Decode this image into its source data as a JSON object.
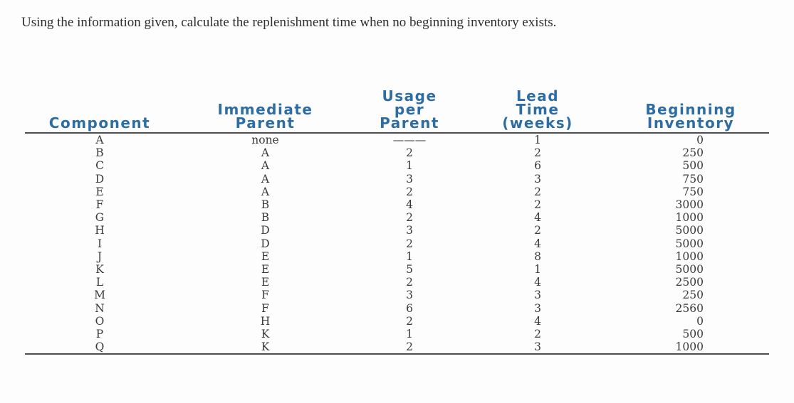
{
  "question": "Using the information given, calculate the replenishment time when no beginning inventory exists.",
  "table": {
    "columns": [
      {
        "key": "component",
        "label": "Component"
      },
      {
        "key": "immediate_parent",
        "label": "Immediate\nParent"
      },
      {
        "key": "usage_per_parent",
        "label": "Usage\nper\nParent"
      },
      {
        "key": "lead_time_weeks",
        "label": "Lead\nTime\n(weeks)"
      },
      {
        "key": "beginning_inventory",
        "label": "Beginning\nInventory"
      }
    ],
    "rows": [
      {
        "component": "A",
        "immediate_parent": "none",
        "usage_per_parent": "———",
        "lead_time_weeks": "1",
        "beginning_inventory": "0"
      },
      {
        "component": "B",
        "immediate_parent": "A",
        "usage_per_parent": "2",
        "lead_time_weeks": "2",
        "beginning_inventory": "250"
      },
      {
        "component": "C",
        "immediate_parent": "A",
        "usage_per_parent": "1",
        "lead_time_weeks": "6",
        "beginning_inventory": "500"
      },
      {
        "component": "D",
        "immediate_parent": "A",
        "usage_per_parent": "3",
        "lead_time_weeks": "3",
        "beginning_inventory": "750"
      },
      {
        "component": "E",
        "immediate_parent": "A",
        "usage_per_parent": "2",
        "lead_time_weeks": "2",
        "beginning_inventory": "750"
      },
      {
        "component": "F",
        "immediate_parent": "B",
        "usage_per_parent": "4",
        "lead_time_weeks": "2",
        "beginning_inventory": "3000"
      },
      {
        "component": "G",
        "immediate_parent": "B",
        "usage_per_parent": "2",
        "lead_time_weeks": "4",
        "beginning_inventory": "1000"
      },
      {
        "component": "H",
        "immediate_parent": "D",
        "usage_per_parent": "3",
        "lead_time_weeks": "2",
        "beginning_inventory": "5000"
      },
      {
        "component": "I",
        "immediate_parent": "D",
        "usage_per_parent": "2",
        "lead_time_weeks": "4",
        "beginning_inventory": "5000"
      },
      {
        "component": "J",
        "immediate_parent": "E",
        "usage_per_parent": "1",
        "lead_time_weeks": "8",
        "beginning_inventory": "1000"
      },
      {
        "component": "K",
        "immediate_parent": "E",
        "usage_per_parent": "5",
        "lead_time_weeks": "1",
        "beginning_inventory": "5000"
      },
      {
        "component": "L",
        "immediate_parent": "E",
        "usage_per_parent": "2",
        "lead_time_weeks": "4",
        "beginning_inventory": "2500"
      },
      {
        "component": "M",
        "immediate_parent": "F",
        "usage_per_parent": "3",
        "lead_time_weeks": "3",
        "beginning_inventory": "250"
      },
      {
        "component": "N",
        "immediate_parent": "F",
        "usage_per_parent": "6",
        "lead_time_weeks": "3",
        "beginning_inventory": "2560"
      },
      {
        "component": "O",
        "immediate_parent": "H",
        "usage_per_parent": "2",
        "lead_time_weeks": "4",
        "beginning_inventory": "0"
      },
      {
        "component": "P",
        "immediate_parent": "K",
        "usage_per_parent": "1",
        "lead_time_weeks": "2",
        "beginning_inventory": "500"
      },
      {
        "component": "Q",
        "immediate_parent": "K",
        "usage_per_parent": "2",
        "lead_time_weeks": "3",
        "beginning_inventory": "1000"
      }
    ]
  },
  "colors": {
    "header_blue": "#2d6da4",
    "rule": "#4e4e4e",
    "body_text": "#3a3a3a",
    "question_text": "#2e2e2e",
    "background": "#fdfdfd"
  }
}
